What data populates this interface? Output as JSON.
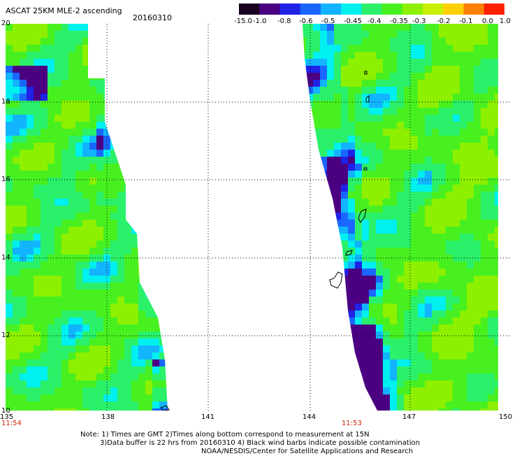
{
  "header": {
    "title": "ASCAT 25KM MLE-2 ascending",
    "date": "20160310"
  },
  "colorbar": {
    "labels": [
      "-15.0",
      "-1.0",
      "-0.8",
      "-0.6",
      "-0.5",
      "-0.45",
      "-0.4",
      "-0.35",
      "-0.3",
      "-0.2",
      "-0.1",
      "0.0",
      "1.0"
    ],
    "colors": [
      "#1a0020",
      "#4b0082",
      "#1e22e6",
      "#1a66ff",
      "#12b4ff",
      "#00f0f0",
      "#2af06a",
      "#48f020",
      "#8cf000",
      "#c8f000",
      "#ffd000",
      "#ff8000",
      "#ff2000"
    ]
  },
  "map": {
    "lat_labels": [
      "20",
      "18",
      "16",
      "14",
      "12",
      "10"
    ],
    "lon_labels": [
      "135",
      "138",
      "141",
      "144",
      "147",
      "150"
    ],
    "time_left": "11:54",
    "time_right": "11:53"
  },
  "notes": {
    "line1": "Note: 1) Times are GMT 2)Times along bottom correspond to measurement at 15N",
    "line2": "3)Data buffer is 22 hrs from 20160310 4) Black wind barbs indicate possible contamination",
    "line3": "NOAA/NESDIS/Center for Satellite Applications and Research"
  }
}
